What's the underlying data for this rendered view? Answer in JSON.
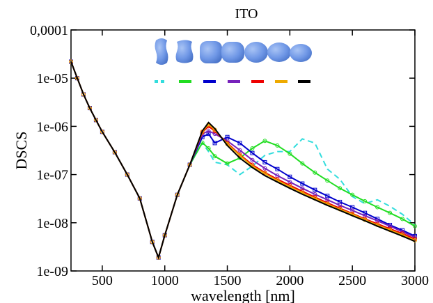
{
  "chart_data": {
    "type": "line",
    "title": "ITO",
    "x_label": "wavelength [nm]",
    "y_label": "DSCS",
    "log_y": true,
    "xlim": [
      250,
      3000
    ],
    "ylim": [
      1e-09,
      0.0001
    ],
    "xticks": [
      500,
      1000,
      1500,
      2000,
      2500,
      3000
    ],
    "yticks": [
      {
        "value": 1e-09,
        "label": "1e-09"
      },
      {
        "value": 1e-08,
        "label": "1e-08"
      },
      {
        "value": 1e-07,
        "label": "1e-07"
      },
      {
        "value": 1e-06,
        "label": "1e-06"
      },
      {
        "value": 1e-05,
        "label": "1e-05"
      },
      {
        "value": 0.0001,
        "label": "0,0001"
      }
    ],
    "x": [
      250,
      300,
      350,
      400,
      450,
      500,
      600,
      700,
      800,
      900,
      950,
      1000,
      1100,
      1200,
      1300,
      1350,
      1400,
      1500,
      1600,
      1700,
      1800,
      1900,
      2000,
      2100,
      2200,
      2300,
      2400,
      2500,
      2600,
      2700,
      2800,
      2900,
      3000
    ],
    "series": [
      {
        "color": "#33dddd",
        "dashed": true,
        "marker": "none",
        "values": [
          2.2e-05,
          1e-05,
          4.6e-06,
          2.4e-06,
          1.35e-06,
          7.7e-07,
          2.9e-07,
          1e-07,
          3.2e-08,
          4e-09,
          1.9e-09,
          5.5e-09,
          3.8e-08,
          1.6e-07,
          4.5e-07,
          3e-07,
          1.8e-07,
          1.6e-07,
          1e-07,
          1.5e-07,
          2.5e-07,
          3e-07,
          3e-07,
          5.5e-07,
          4.5e-07,
          1.3e-07,
          8e-08,
          3.5e-08,
          2.5e-08,
          3e-08,
          2.2e-08,
          1.5e-08,
          9e-09
        ]
      },
      {
        "color": "#22dd22",
        "dashed": false,
        "marker": "circle",
        "values": [
          2.2e-05,
          1e-05,
          4.6e-06,
          2.4e-06,
          1.35e-06,
          7.7e-07,
          2.9e-07,
          1e-07,
          3.2e-08,
          4e-09,
          1.9e-09,
          5.5e-09,
          3.8e-08,
          1.6e-07,
          4.6e-07,
          3.5e-07,
          2.4e-07,
          1.7e-07,
          2.2e-07,
          3.5e-07,
          5e-07,
          4e-07,
          2.7e-07,
          1.7e-07,
          1.1e-07,
          7.5e-08,
          5.2e-08,
          3.8e-08,
          2.8e-08,
          2.1e-08,
          1.6e-08,
          1.2e-08,
          8.5e-09
        ]
      },
      {
        "color": "#0000cc",
        "dashed": false,
        "marker": "square",
        "values": [
          2.2e-05,
          1e-05,
          4.6e-06,
          2.4e-06,
          1.35e-06,
          7.7e-07,
          2.9e-07,
          1e-07,
          3.2e-08,
          4e-09,
          1.9e-09,
          5.5e-09,
          3.8e-08,
          1.6e-07,
          6e-07,
          7e-07,
          4.5e-07,
          6e-07,
          4.5e-07,
          2.8e-07,
          1.8e-07,
          1.3e-07,
          9e-08,
          6.5e-08,
          4.8e-08,
          3.6e-08,
          2.7e-08,
          2.1e-08,
          1.6e-08,
          1.2e-08,
          9e-09,
          7e-09,
          5.3e-09
        ]
      },
      {
        "color": "#7722bb",
        "dashed": false,
        "marker": "circle",
        "values": [
          2.2e-05,
          1e-05,
          4.6e-06,
          2.4e-06,
          1.35e-06,
          7.7e-07,
          2.9e-07,
          1e-07,
          3.2e-08,
          4e-09,
          1.9e-09,
          5.5e-09,
          3.8e-08,
          1.6e-07,
          7e-07,
          8e-07,
          7e-07,
          5e-07,
          3.2e-07,
          2e-07,
          1.35e-07,
          9.5e-08,
          7e-08,
          5.2e-08,
          3.9e-08,
          3e-08,
          2.3e-08,
          1.8e-08,
          1.4e-08,
          1.1e-08,
          8.5e-09,
          6.5e-09,
          5e-09
        ]
      },
      {
        "color": "#ee0000",
        "dashed": false,
        "marker": "circle",
        "values": [
          2.2e-05,
          1e-05,
          4.6e-06,
          2.4e-06,
          1.35e-06,
          7.7e-07,
          2.9e-07,
          1e-07,
          3.2e-08,
          4e-09,
          1.9e-09,
          5.5e-09,
          3.8e-08,
          1.6e-07,
          7.5e-07,
          1e-06,
          8e-07,
          4.5e-07,
          2.6e-07,
          1.6e-07,
          1.1e-07,
          8e-08,
          6e-08,
          4.5e-08,
          3.4e-08,
          2.6e-08,
          2e-08,
          1.55e-08,
          1.2e-08,
          9.5e-09,
          7.5e-09,
          6e-09,
          4.6e-09
        ]
      },
      {
        "color": "#eeaa00",
        "dashed": false,
        "marker": "circle",
        "values": [
          2.2e-05,
          1e-05,
          4.6e-06,
          2.4e-06,
          1.35e-06,
          7.7e-07,
          2.9e-07,
          1e-07,
          3.2e-08,
          4e-09,
          1.9e-09,
          5.5e-09,
          3.8e-08,
          1.6e-07,
          7.8e-07,
          1.1e-06,
          8.5e-07,
          4.3e-07,
          2.5e-07,
          1.5e-07,
          1.05e-07,
          7.5e-08,
          5.6e-08,
          4.2e-08,
          3.2e-08,
          2.45e-08,
          1.9e-08,
          1.5e-08,
          1.15e-08,
          9e-09,
          7.1e-09,
          5.6e-09,
          4.3e-09
        ]
      },
      {
        "color": "#000000",
        "dashed": false,
        "marker": "none",
        "values": [
          2.2e-05,
          1e-05,
          4.6e-06,
          2.4e-06,
          1.35e-06,
          7.7e-07,
          2.9e-07,
          1e-07,
          3.2e-08,
          4e-09,
          1.9e-09,
          5.5e-09,
          3.8e-08,
          1.6e-07,
          8e-07,
          1.2e-06,
          9e-07,
          4e-07,
          2.2e-07,
          1.4e-07,
          9.5e-08,
          7e-08,
          5.2e-08,
          3.9e-08,
          3e-08,
          2.3e-08,
          1.8e-08,
          1.4e-08,
          1.1e-08,
          8.5e-09,
          6.7e-09,
          5.3e-09,
          4.1e-09
        ]
      }
    ]
  }
}
